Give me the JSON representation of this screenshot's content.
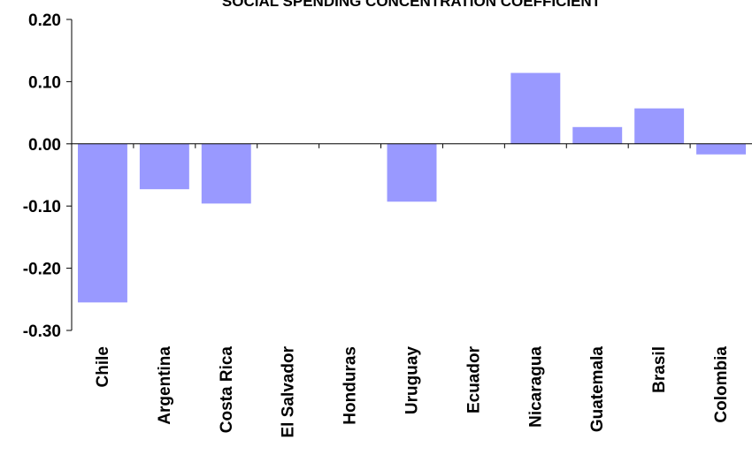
{
  "chart_data": {
    "type": "bar",
    "title": "SOCIAL SPENDING CONCENTRATION COEFFICIENT",
    "xlabel": "",
    "ylabel": "",
    "categories": [
      "Chile",
      "Argentina",
      "Costa Rica",
      "El Salvador",
      "Honduras",
      "Uruguay",
      "Ecuador",
      "Nicaragua",
      "Guatemala",
      "Brasil",
      "Colombia"
    ],
    "values": [
      -0.255,
      -0.073,
      -0.096,
      0.0,
      0.0,
      -0.093,
      0.0,
      0.114,
      0.027,
      0.057,
      -0.017
    ],
    "ylim": [
      -0.3,
      0.2
    ],
    "yticks": [
      0.2,
      0.1,
      0.0,
      -0.1,
      -0.2,
      -0.3
    ],
    "ytick_labels": [
      "0.20",
      "0.10",
      "0.00",
      "-0.10",
      "-0.20",
      "-0.30"
    ],
    "grid": false,
    "legend": "none",
    "bar_color": "#9999ff"
  }
}
